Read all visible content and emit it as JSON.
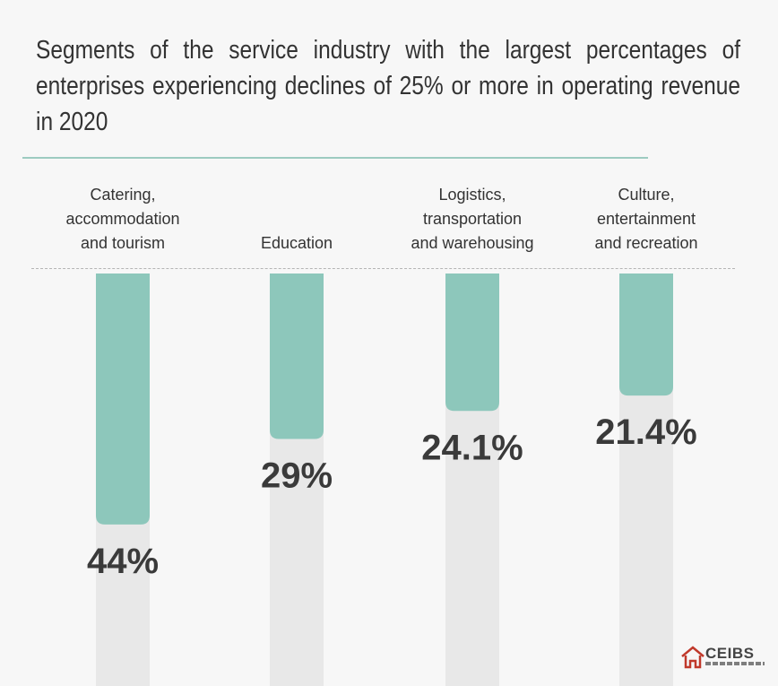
{
  "chart_data": {
    "type": "bar",
    "title": "Segments of the service industry with the largest percentages of enterprises experiencing declines of 25% or more in operating revenue in 2020",
    "categories": [
      [
        "Catering,",
        "accommodation",
        "and tourism"
      ],
      [
        "Education"
      ],
      [
        "Logistics,",
        "transportation",
        "and warehousing"
      ],
      [
        "Culture,",
        "entertainment",
        "and recreation"
      ]
    ],
    "values": [
      44,
      29,
      24.1,
      21.4
    ],
    "value_labels": [
      "44%",
      "29%",
      "24.1%",
      "21.4%"
    ],
    "ylim": [
      0,
      100
    ],
    "colors": {
      "bar": "#8dc7bb",
      "track": "#e8e8e8",
      "rule": "#9dcbc0"
    }
  },
  "logo": {
    "text": "CEIBS"
  }
}
